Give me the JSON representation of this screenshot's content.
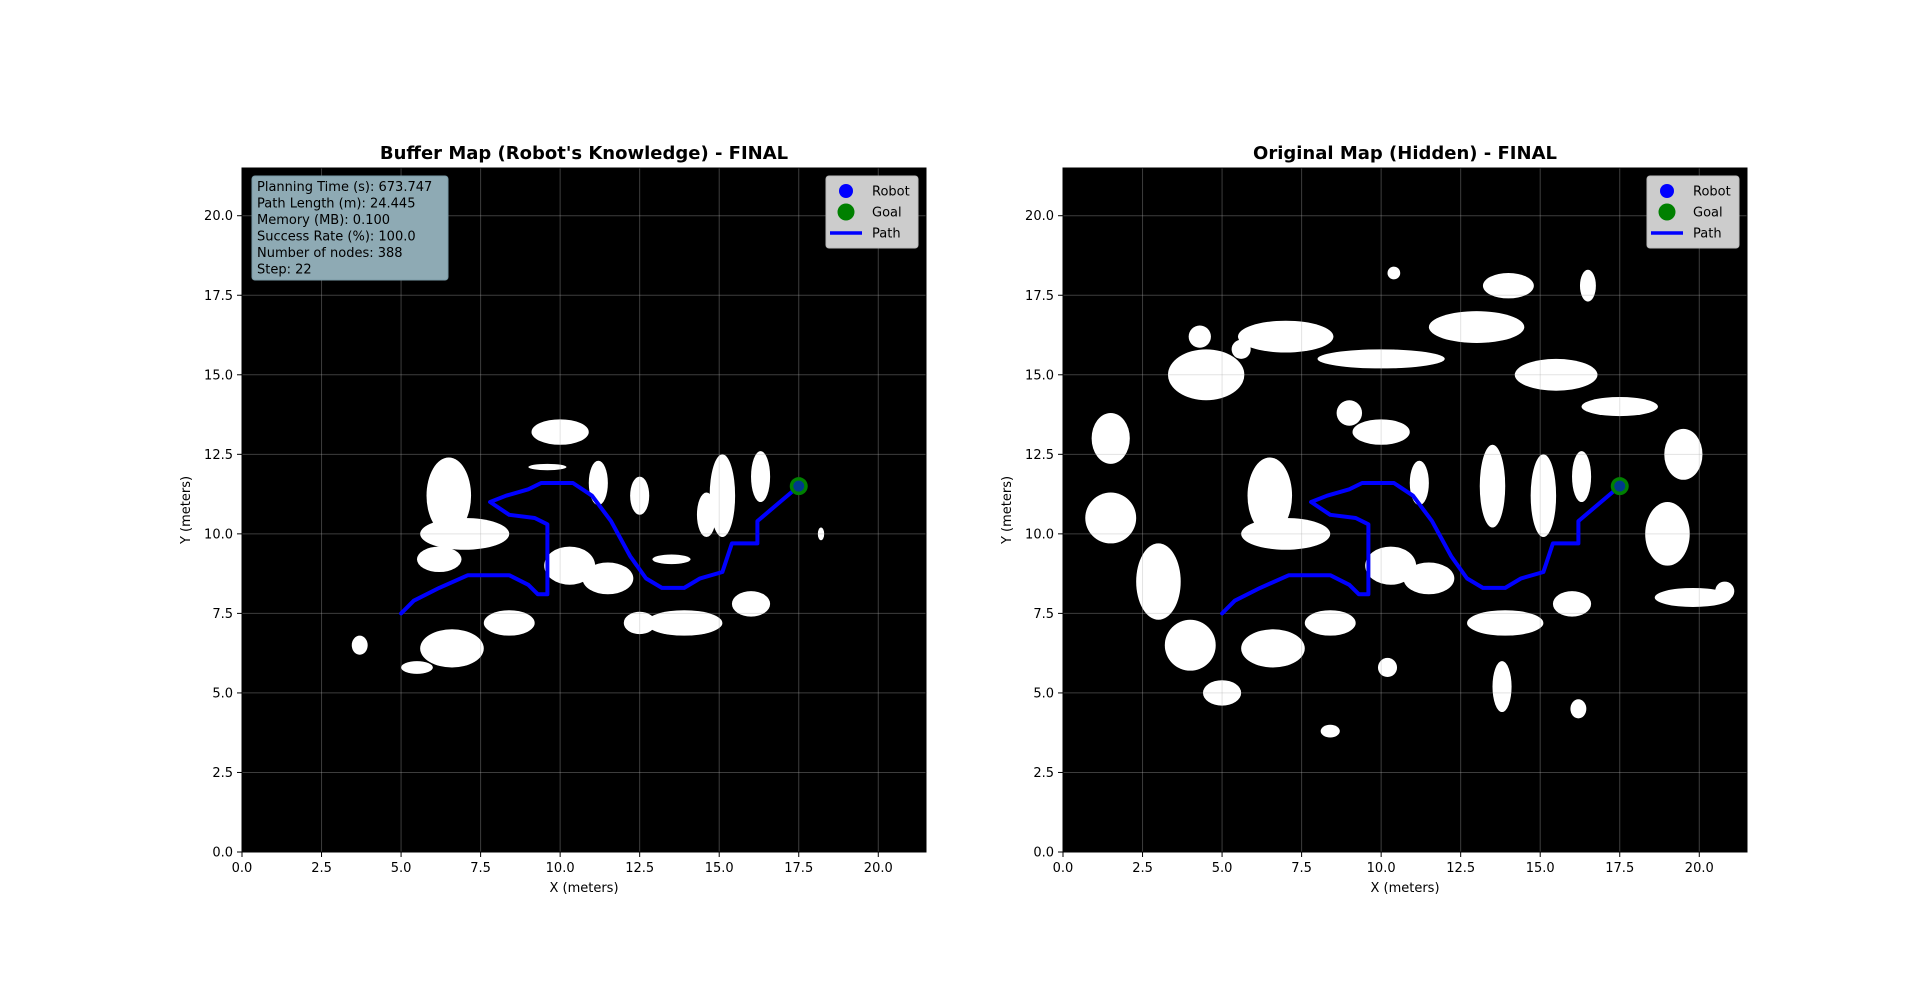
{
  "chart_data": [
    {
      "type": "map",
      "title": "Buffer Map (Robot's Knowledge) - FINAL",
      "xlabel": "X (meters)",
      "ylabel": "Y (meters)",
      "xlim": [
        0,
        21.5
      ],
      "ylim": [
        0,
        21.5
      ],
      "xticks": [
        "0.0",
        "2.5",
        "5.0",
        "7.5",
        "10.0",
        "12.5",
        "15.0",
        "17.5",
        "20.0"
      ],
      "yticks": [
        "0.0",
        "2.5",
        "5.0",
        "7.5",
        "10.0",
        "12.5",
        "15.0",
        "17.5",
        "20.0"
      ],
      "grid": true,
      "background_color": "#000000",
      "obstacle_color": "#ffffff",
      "legend": {
        "placement": "top-right",
        "entries": [
          {
            "label": "Robot",
            "marker": "circle",
            "color": "#0000ff"
          },
          {
            "label": "Goal",
            "marker": "circle",
            "color": "#008000"
          },
          {
            "label": "Path",
            "marker": "line",
            "color": "#0000ff"
          }
        ]
      },
      "metrics": [
        "Planning Time (s): 673.747",
        "Path Length (m): 24.445",
        "Memory (MB): 0.100",
        "Success Rate (%): 100.0",
        "Number of nodes: 388",
        "Step: 22"
      ],
      "metrics_box_color": "#8eaab4",
      "robot": {
        "x": 17.5,
        "y": 11.5,
        "color": "#0000ff"
      },
      "goal": {
        "x": 17.5,
        "y": 11.5,
        "color": "#008000"
      },
      "path": {
        "color": "#0000ff",
        "points": [
          [
            5.0,
            7.5
          ],
          [
            5.4,
            7.9
          ],
          [
            6.2,
            8.3
          ],
          [
            7.1,
            8.7
          ],
          [
            8.4,
            8.7
          ],
          [
            9.0,
            8.4
          ],
          [
            9.3,
            8.1
          ],
          [
            9.6,
            8.1
          ],
          [
            9.6,
            10.3
          ],
          [
            9.2,
            10.5
          ],
          [
            8.4,
            10.6
          ],
          [
            7.8,
            11.0
          ],
          [
            8.3,
            11.2
          ],
          [
            9.0,
            11.4
          ],
          [
            9.4,
            11.6
          ],
          [
            10.4,
            11.6
          ],
          [
            11.0,
            11.2
          ],
          [
            11.6,
            10.4
          ],
          [
            12.2,
            9.3
          ],
          [
            12.7,
            8.6
          ],
          [
            13.2,
            8.3
          ],
          [
            13.9,
            8.3
          ],
          [
            14.4,
            8.6
          ],
          [
            15.1,
            8.8
          ],
          [
            15.4,
            9.7
          ],
          [
            16.2,
            9.7
          ],
          [
            16.2,
            10.4
          ],
          [
            17.5,
            11.5
          ]
        ]
      },
      "obstacles": [
        {
          "shape": "blob",
          "cx": 6.5,
          "cy": 11.2,
          "rx": 0.7,
          "ry": 1.2
        },
        {
          "shape": "blob",
          "cx": 7.0,
          "cy": 10.0,
          "rx": 1.4,
          "ry": 0.5
        },
        {
          "shape": "blob",
          "cx": 6.2,
          "cy": 9.2,
          "rx": 0.7,
          "ry": 0.4
        },
        {
          "shape": "blob",
          "cx": 10.0,
          "cy": 13.2,
          "rx": 0.9,
          "ry": 0.4
        },
        {
          "shape": "blob",
          "cx": 9.6,
          "cy": 12.1,
          "rx": 0.6,
          "ry": 0.1
        },
        {
          "shape": "blob",
          "cx": 11.2,
          "cy": 11.6,
          "rx": 0.3,
          "ry": 0.7
        },
        {
          "shape": "blob",
          "cx": 12.5,
          "cy": 11.2,
          "rx": 0.3,
          "ry": 0.6
        },
        {
          "shape": "blob",
          "cx": 13.5,
          "cy": 9.2,
          "rx": 0.6,
          "ry": 0.15
        },
        {
          "shape": "blob",
          "cx": 15.1,
          "cy": 11.2,
          "rx": 0.4,
          "ry": 1.3
        },
        {
          "shape": "blob",
          "cx": 16.3,
          "cy": 11.8,
          "rx": 0.3,
          "ry": 0.8
        },
        {
          "shape": "blob",
          "cx": 14.6,
          "cy": 10.6,
          "rx": 0.3,
          "ry": 0.7
        },
        {
          "shape": "blob",
          "cx": 10.3,
          "cy": 9.0,
          "rx": 0.8,
          "ry": 0.6
        },
        {
          "shape": "blob",
          "cx": 11.5,
          "cy": 8.6,
          "rx": 0.8,
          "ry": 0.5
        },
        {
          "shape": "blob",
          "cx": 13.9,
          "cy": 7.2,
          "rx": 1.2,
          "ry": 0.4
        },
        {
          "shape": "blob",
          "cx": 16.0,
          "cy": 7.8,
          "rx": 0.6,
          "ry": 0.4
        },
        {
          "shape": "blob",
          "cx": 8.4,
          "cy": 7.2,
          "rx": 0.8,
          "ry": 0.4
        },
        {
          "shape": "blob",
          "cx": 6.6,
          "cy": 6.4,
          "rx": 1.0,
          "ry": 0.6
        },
        {
          "shape": "blob",
          "cx": 5.5,
          "cy": 5.8,
          "rx": 0.5,
          "ry": 0.2
        },
        {
          "shape": "blob",
          "cx": 3.7,
          "cy": 6.5,
          "rx": 0.25,
          "ry": 0.3
        },
        {
          "shape": "blob",
          "cx": 18.2,
          "cy": 10.0,
          "rx": 0.1,
          "ry": 0.2
        },
        {
          "shape": "blob",
          "cx": 12.5,
          "cy": 7.2,
          "rx": 0.5,
          "ry": 0.35
        }
      ]
    },
    {
      "type": "map",
      "title": "Original Map (Hidden) - FINAL",
      "xlabel": "X (meters)",
      "ylabel": "Y (meters)",
      "xlim": [
        0,
        21.5
      ],
      "ylim": [
        0,
        21.5
      ],
      "xticks": [
        "0.0",
        "2.5",
        "5.0",
        "7.5",
        "10.0",
        "12.5",
        "15.0",
        "17.5",
        "20.0"
      ],
      "yticks": [
        "0.0",
        "2.5",
        "5.0",
        "7.5",
        "10.0",
        "12.5",
        "15.0",
        "17.5",
        "20.0"
      ],
      "grid": true,
      "background_color": "#000000",
      "obstacle_color": "#ffffff",
      "legend": {
        "placement": "top-right",
        "entries": [
          {
            "label": "Robot",
            "marker": "circle",
            "color": "#0000ff"
          },
          {
            "label": "Goal",
            "marker": "circle",
            "color": "#008000"
          },
          {
            "label": "Path",
            "marker": "line",
            "color": "#0000ff"
          }
        ]
      },
      "robot": {
        "x": 17.5,
        "y": 11.5,
        "color": "#0000ff"
      },
      "goal": {
        "x": 17.5,
        "y": 11.5,
        "color": "#008000"
      },
      "path": {
        "color": "#0000ff",
        "points": [
          [
            5.0,
            7.5
          ],
          [
            5.4,
            7.9
          ],
          [
            6.2,
            8.3
          ],
          [
            7.1,
            8.7
          ],
          [
            8.4,
            8.7
          ],
          [
            9.0,
            8.4
          ],
          [
            9.3,
            8.1
          ],
          [
            9.6,
            8.1
          ],
          [
            9.6,
            10.3
          ],
          [
            9.2,
            10.5
          ],
          [
            8.4,
            10.6
          ],
          [
            7.8,
            11.0
          ],
          [
            8.3,
            11.2
          ],
          [
            9.0,
            11.4
          ],
          [
            9.4,
            11.6
          ],
          [
            10.4,
            11.6
          ],
          [
            11.0,
            11.2
          ],
          [
            11.6,
            10.4
          ],
          [
            12.2,
            9.3
          ],
          [
            12.7,
            8.6
          ],
          [
            13.2,
            8.3
          ],
          [
            13.9,
            8.3
          ],
          [
            14.4,
            8.6
          ],
          [
            15.1,
            8.8
          ],
          [
            15.4,
            9.7
          ],
          [
            16.2,
            9.7
          ],
          [
            16.2,
            10.4
          ],
          [
            17.5,
            11.5
          ]
        ]
      },
      "obstacles": [
        {
          "shape": "blob",
          "cx": 4.5,
          "cy": 15.0,
          "rx": 1.2,
          "ry": 0.8
        },
        {
          "shape": "blob",
          "cx": 7.0,
          "cy": 16.2,
          "rx": 1.5,
          "ry": 0.5
        },
        {
          "shape": "blob",
          "cx": 10.0,
          "cy": 15.5,
          "rx": 2.0,
          "ry": 0.3
        },
        {
          "shape": "blob",
          "cx": 13.0,
          "cy": 16.5,
          "rx": 1.5,
          "ry": 0.5
        },
        {
          "shape": "blob",
          "cx": 15.5,
          "cy": 15.0,
          "rx": 1.3,
          "ry": 0.5
        },
        {
          "shape": "blob",
          "cx": 17.5,
          "cy": 14.0,
          "rx": 1.2,
          "ry": 0.3
        },
        {
          "shape": "blob",
          "cx": 19.5,
          "cy": 12.5,
          "rx": 0.6,
          "ry": 0.8
        },
        {
          "shape": "blob",
          "cx": 19.0,
          "cy": 10.0,
          "rx": 0.7,
          "ry": 1.0
        },
        {
          "shape": "blob",
          "cx": 19.8,
          "cy": 8.0,
          "rx": 1.2,
          "ry": 0.3
        },
        {
          "shape": "blob",
          "cx": 1.5,
          "cy": 10.5,
          "rx": 0.8,
          "ry": 0.8
        },
        {
          "shape": "blob",
          "cx": 1.5,
          "cy": 13.0,
          "rx": 0.6,
          "ry": 0.8
        },
        {
          "shape": "blob",
          "cx": 3.0,
          "cy": 8.5,
          "rx": 0.7,
          "ry": 1.2
        },
        {
          "shape": "blob",
          "cx": 4.0,
          "cy": 6.5,
          "rx": 0.8,
          "ry": 0.8
        },
        {
          "shape": "blob",
          "cx": 5.0,
          "cy": 5.0,
          "rx": 0.6,
          "ry": 0.4
        },
        {
          "shape": "blob",
          "cx": 6.5,
          "cy": 11.2,
          "rx": 0.7,
          "ry": 1.2
        },
        {
          "shape": "blob",
          "cx": 7.0,
          "cy": 10.0,
          "rx": 1.4,
          "ry": 0.5
        },
        {
          "shape": "blob",
          "cx": 10.0,
          "cy": 13.2,
          "rx": 0.9,
          "ry": 0.4
        },
        {
          "shape": "blob",
          "cx": 11.2,
          "cy": 11.6,
          "rx": 0.3,
          "ry": 0.7
        },
        {
          "shape": "blob",
          "cx": 13.5,
          "cy": 11.5,
          "rx": 0.4,
          "ry": 1.3
        },
        {
          "shape": "blob",
          "cx": 15.1,
          "cy": 11.2,
          "rx": 0.4,
          "ry": 1.3
        },
        {
          "shape": "blob",
          "cx": 16.3,
          "cy": 11.8,
          "rx": 0.3,
          "ry": 0.8
        },
        {
          "shape": "blob",
          "cx": 10.3,
          "cy": 9.0,
          "rx": 0.8,
          "ry": 0.6
        },
        {
          "shape": "blob",
          "cx": 11.5,
          "cy": 8.6,
          "rx": 0.8,
          "ry": 0.5
        },
        {
          "shape": "blob",
          "cx": 13.9,
          "cy": 7.2,
          "rx": 1.2,
          "ry": 0.4
        },
        {
          "shape": "blob",
          "cx": 16.0,
          "cy": 7.8,
          "rx": 0.6,
          "ry": 0.4
        },
        {
          "shape": "blob",
          "cx": 8.4,
          "cy": 7.2,
          "rx": 0.8,
          "ry": 0.4
        },
        {
          "shape": "blob",
          "cx": 6.6,
          "cy": 6.4,
          "rx": 1.0,
          "ry": 0.6
        },
        {
          "shape": "blob",
          "cx": 9.0,
          "cy": 13.8,
          "rx": 0.4,
          "ry": 0.4
        },
        {
          "shape": "blob",
          "cx": 4.3,
          "cy": 16.2,
          "rx": 0.35,
          "ry": 0.35
        },
        {
          "shape": "blob",
          "cx": 5.6,
          "cy": 15.8,
          "rx": 0.3,
          "ry": 0.3
        },
        {
          "shape": "blob",
          "cx": 14.0,
          "cy": 17.8,
          "rx": 0.8,
          "ry": 0.4
        },
        {
          "shape": "blob",
          "cx": 16.5,
          "cy": 17.8,
          "rx": 0.25,
          "ry": 0.5
        },
        {
          "shape": "blob",
          "cx": 10.2,
          "cy": 5.8,
          "rx": 0.3,
          "ry": 0.3
        },
        {
          "shape": "blob",
          "cx": 13.8,
          "cy": 5.2,
          "rx": 0.3,
          "ry": 0.8
        },
        {
          "shape": "blob",
          "cx": 16.2,
          "cy": 4.5,
          "rx": 0.25,
          "ry": 0.3
        },
        {
          "shape": "blob",
          "cx": 8.4,
          "cy": 3.8,
          "rx": 0.3,
          "ry": 0.2
        },
        {
          "shape": "blob",
          "cx": 10.4,
          "cy": 18.2,
          "rx": 0.2,
          "ry": 0.2
        },
        {
          "shape": "blob",
          "cx": 20.8,
          "cy": 8.2,
          "rx": 0.3,
          "ry": 0.3
        }
      ]
    }
  ]
}
